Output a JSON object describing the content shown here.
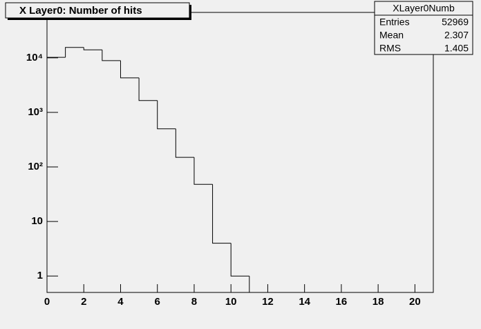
{
  "chart_data": {
    "type": "histogram",
    "title": "X Layer0: Number of hits",
    "bins": [
      0,
      1,
      2,
      3,
      4,
      5,
      6,
      7,
      8,
      9,
      10,
      11,
      12,
      13,
      14,
      15,
      16,
      17,
      18,
      19,
      20,
      21
    ],
    "values": [
      10200,
      15500,
      14000,
      8900,
      4300,
      1650,
      500,
      150,
      48,
      4,
      1,
      0,
      0,
      0,
      0,
      0,
      0,
      0,
      0,
      0,
      0
    ],
    "color": "#000000",
    "log_y": true,
    "xlim": [
      0,
      21
    ],
    "xticks": [
      0,
      2,
      4,
      6,
      8,
      10,
      12,
      14,
      16,
      18,
      20
    ],
    "ylim": [
      0.5,
      68000
    ],
    "yticks": [
      1,
      10,
      {
        "value": 100,
        "label": "10²"
      },
      {
        "value": 1000,
        "label": "10³"
      },
      {
        "value": 10000,
        "label": "10⁴"
      }
    ],
    "stats": {
      "title": "XLayer0Numb",
      "rows": [
        {
          "label": "Entries",
          "value": 52969
        },
        {
          "label": "Mean",
          "value": 2.307
        },
        {
          "label": "RMS",
          "value": 1.405
        }
      ]
    }
  }
}
